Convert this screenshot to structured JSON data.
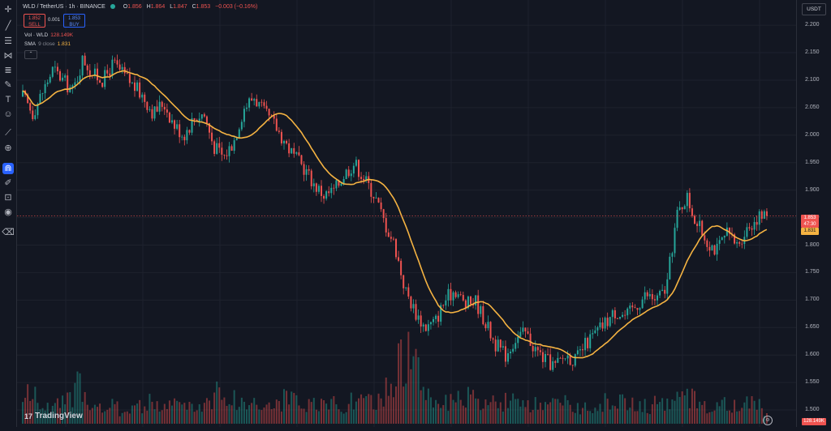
{
  "header": {
    "symbol": "WLD / TetherUS · 1h · BINANCE",
    "o_label": "O",
    "o_value": "1.856",
    "h_label": "H",
    "h_value": "1.864",
    "l_label": "L",
    "l_value": "1.847",
    "c_label": "C",
    "c_value": "1.853",
    "change": "−0.003 (−0.16%)"
  },
  "trade": {
    "sell_price": "1.852",
    "sell_label": "SELL",
    "spread": "0.001",
    "buy_price": "1.853",
    "buy_label": "BUY"
  },
  "indicators": {
    "vol_label": "Vol · WLD",
    "vol_value": "128.149K",
    "sma_label": "SMA",
    "sma_params": "9 close",
    "sma_value": "1.831"
  },
  "axis": {
    "currency": "USDT",
    "current_price": "1.853",
    "countdown": "47:30",
    "sma_tag": "1.831",
    "volume_tag": "128.149K"
  },
  "branding": {
    "name": "TradingView",
    "mark": "17"
  },
  "toolbar_icons": [
    "crosshair-icon",
    "trend-line-icon",
    "fib-icon",
    "pattern-icon",
    "prediction-icon",
    "brush-icon",
    "text-icon",
    "emoji-icon",
    "ruler-icon",
    "zoom-in-icon",
    "magnet-icon",
    "drawing-lock-icon",
    "lock-icon",
    "eye-icon",
    "trash-icon"
  ],
  "colors": {
    "up": "#26a69a",
    "down": "#ef5350",
    "sma": "#f5b342",
    "background": "#131722"
  },
  "chart_data": {
    "type": "candlestick",
    "ylim": [
      1.475,
      2.24
    ],
    "yticks": [
      "2.200",
      "2.150",
      "2.100",
      "2.050",
      "2.000",
      "1.950",
      "1.900",
      "1.850",
      "1.800",
      "1.750",
      "1.700",
      "1.650",
      "1.600",
      "1.550",
      "1.500"
    ],
    "last_price": 1.853,
    "sma_period": 9,
    "close_path": [
      2.07,
      2.04,
      2.08,
      2.12,
      2.1,
      2.08,
      2.14,
      2.11,
      2.1,
      2.13,
      2.11,
      2.09,
      2.07,
      2.04,
      2.06,
      2.02,
      2.0,
      2.03,
      2.04,
      1.98,
      1.96,
      1.99,
      2.05,
      2.07,
      2.04,
      2.02,
      1.99,
      1.96,
      1.94,
      1.91,
      1.89,
      1.9,
      1.93,
      1.95,
      1.92,
      1.89,
      1.84,
      1.8,
      1.72,
      1.68,
      1.65,
      1.66,
      1.7,
      1.72,
      1.69,
      1.7,
      1.66,
      1.62,
      1.6,
      1.63,
      1.64,
      1.61,
      1.59,
      1.58,
      1.6,
      1.59,
      1.62,
      1.64,
      1.66,
      1.68,
      1.67,
      1.69,
      1.71,
      1.7,
      1.72,
      1.85,
      1.89,
      1.84,
      1.81,
      1.79,
      1.82,
      1.8,
      1.83,
      1.85,
      1.853
    ],
    "volume_path": [
      30,
      38,
      22,
      18,
      25,
      34,
      55,
      20,
      18,
      22,
      15,
      24,
      20,
      28,
      16,
      30,
      22,
      18,
      26,
      34,
      40,
      30,
      24,
      28,
      20,
      22,
      30,
      26,
      18,
      24,
      20,
      28,
      22,
      30,
      26,
      24,
      36,
      60,
      90,
      70,
      40,
      30,
      26,
      24,
      34,
      28,
      22,
      26,
      30,
      24,
      20,
      22,
      18,
      26,
      24,
      20,
      22,
      24,
      26,
      30,
      24,
      28,
      20,
      24,
      26,
      28,
      34,
      30,
      24,
      22,
      26,
      20,
      24,
      22,
      18
    ]
  }
}
